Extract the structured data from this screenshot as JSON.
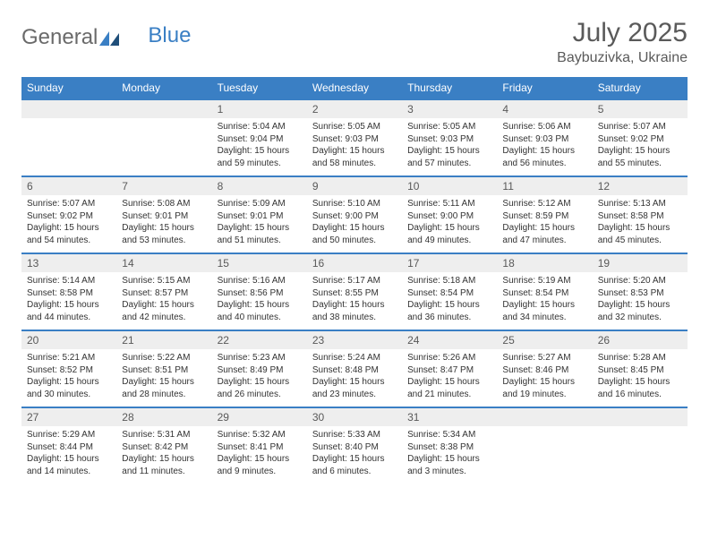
{
  "logo": {
    "partA": "General",
    "partB": "Blue"
  },
  "title": "July 2025",
  "location": "Baybuzivka, Ukraine",
  "colors": {
    "header_bg": "#3a7fc4",
    "header_text": "#ffffff",
    "daynum_bg": "#eeeeee",
    "border": "#3a7fc4",
    "text": "#333333"
  },
  "dayNames": [
    "Sunday",
    "Monday",
    "Tuesday",
    "Wednesday",
    "Thursday",
    "Friday",
    "Saturday"
  ],
  "weeks": [
    [
      null,
      null,
      {
        "n": "1",
        "sr": "Sunrise: 5:04 AM",
        "ss": "Sunset: 9:04 PM",
        "dl": "Daylight: 15 hours and 59 minutes."
      },
      {
        "n": "2",
        "sr": "Sunrise: 5:05 AM",
        "ss": "Sunset: 9:03 PM",
        "dl": "Daylight: 15 hours and 58 minutes."
      },
      {
        "n": "3",
        "sr": "Sunrise: 5:05 AM",
        "ss": "Sunset: 9:03 PM",
        "dl": "Daylight: 15 hours and 57 minutes."
      },
      {
        "n": "4",
        "sr": "Sunrise: 5:06 AM",
        "ss": "Sunset: 9:03 PM",
        "dl": "Daylight: 15 hours and 56 minutes."
      },
      {
        "n": "5",
        "sr": "Sunrise: 5:07 AM",
        "ss": "Sunset: 9:02 PM",
        "dl": "Daylight: 15 hours and 55 minutes."
      }
    ],
    [
      {
        "n": "6",
        "sr": "Sunrise: 5:07 AM",
        "ss": "Sunset: 9:02 PM",
        "dl": "Daylight: 15 hours and 54 minutes."
      },
      {
        "n": "7",
        "sr": "Sunrise: 5:08 AM",
        "ss": "Sunset: 9:01 PM",
        "dl": "Daylight: 15 hours and 53 minutes."
      },
      {
        "n": "8",
        "sr": "Sunrise: 5:09 AM",
        "ss": "Sunset: 9:01 PM",
        "dl": "Daylight: 15 hours and 51 minutes."
      },
      {
        "n": "9",
        "sr": "Sunrise: 5:10 AM",
        "ss": "Sunset: 9:00 PM",
        "dl": "Daylight: 15 hours and 50 minutes."
      },
      {
        "n": "10",
        "sr": "Sunrise: 5:11 AM",
        "ss": "Sunset: 9:00 PM",
        "dl": "Daylight: 15 hours and 49 minutes."
      },
      {
        "n": "11",
        "sr": "Sunrise: 5:12 AM",
        "ss": "Sunset: 8:59 PM",
        "dl": "Daylight: 15 hours and 47 minutes."
      },
      {
        "n": "12",
        "sr": "Sunrise: 5:13 AM",
        "ss": "Sunset: 8:58 PM",
        "dl": "Daylight: 15 hours and 45 minutes."
      }
    ],
    [
      {
        "n": "13",
        "sr": "Sunrise: 5:14 AM",
        "ss": "Sunset: 8:58 PM",
        "dl": "Daylight: 15 hours and 44 minutes."
      },
      {
        "n": "14",
        "sr": "Sunrise: 5:15 AM",
        "ss": "Sunset: 8:57 PM",
        "dl": "Daylight: 15 hours and 42 minutes."
      },
      {
        "n": "15",
        "sr": "Sunrise: 5:16 AM",
        "ss": "Sunset: 8:56 PM",
        "dl": "Daylight: 15 hours and 40 minutes."
      },
      {
        "n": "16",
        "sr": "Sunrise: 5:17 AM",
        "ss": "Sunset: 8:55 PM",
        "dl": "Daylight: 15 hours and 38 minutes."
      },
      {
        "n": "17",
        "sr": "Sunrise: 5:18 AM",
        "ss": "Sunset: 8:54 PM",
        "dl": "Daylight: 15 hours and 36 minutes."
      },
      {
        "n": "18",
        "sr": "Sunrise: 5:19 AM",
        "ss": "Sunset: 8:54 PM",
        "dl": "Daylight: 15 hours and 34 minutes."
      },
      {
        "n": "19",
        "sr": "Sunrise: 5:20 AM",
        "ss": "Sunset: 8:53 PM",
        "dl": "Daylight: 15 hours and 32 minutes."
      }
    ],
    [
      {
        "n": "20",
        "sr": "Sunrise: 5:21 AM",
        "ss": "Sunset: 8:52 PM",
        "dl": "Daylight: 15 hours and 30 minutes."
      },
      {
        "n": "21",
        "sr": "Sunrise: 5:22 AM",
        "ss": "Sunset: 8:51 PM",
        "dl": "Daylight: 15 hours and 28 minutes."
      },
      {
        "n": "22",
        "sr": "Sunrise: 5:23 AM",
        "ss": "Sunset: 8:49 PM",
        "dl": "Daylight: 15 hours and 26 minutes."
      },
      {
        "n": "23",
        "sr": "Sunrise: 5:24 AM",
        "ss": "Sunset: 8:48 PM",
        "dl": "Daylight: 15 hours and 23 minutes."
      },
      {
        "n": "24",
        "sr": "Sunrise: 5:26 AM",
        "ss": "Sunset: 8:47 PM",
        "dl": "Daylight: 15 hours and 21 minutes."
      },
      {
        "n": "25",
        "sr": "Sunrise: 5:27 AM",
        "ss": "Sunset: 8:46 PM",
        "dl": "Daylight: 15 hours and 19 minutes."
      },
      {
        "n": "26",
        "sr": "Sunrise: 5:28 AM",
        "ss": "Sunset: 8:45 PM",
        "dl": "Daylight: 15 hours and 16 minutes."
      }
    ],
    [
      {
        "n": "27",
        "sr": "Sunrise: 5:29 AM",
        "ss": "Sunset: 8:44 PM",
        "dl": "Daylight: 15 hours and 14 minutes."
      },
      {
        "n": "28",
        "sr": "Sunrise: 5:31 AM",
        "ss": "Sunset: 8:42 PM",
        "dl": "Daylight: 15 hours and 11 minutes."
      },
      {
        "n": "29",
        "sr": "Sunrise: 5:32 AM",
        "ss": "Sunset: 8:41 PM",
        "dl": "Daylight: 15 hours and 9 minutes."
      },
      {
        "n": "30",
        "sr": "Sunrise: 5:33 AM",
        "ss": "Sunset: 8:40 PM",
        "dl": "Daylight: 15 hours and 6 minutes."
      },
      {
        "n": "31",
        "sr": "Sunrise: 5:34 AM",
        "ss": "Sunset: 8:38 PM",
        "dl": "Daylight: 15 hours and 3 minutes."
      },
      null,
      null
    ]
  ]
}
